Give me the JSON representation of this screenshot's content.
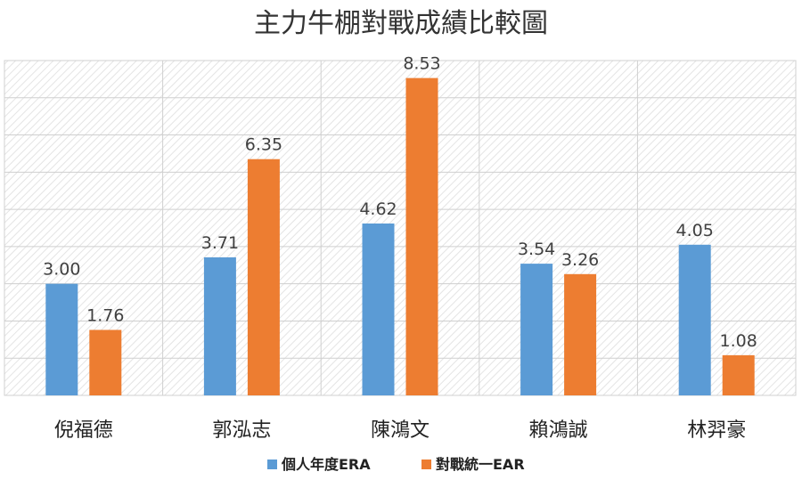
{
  "chart_data": {
    "type": "bar",
    "title": "主力牛棚對戰成績比較圖",
    "xlabel": "",
    "ylabel": "",
    "categories": [
      "倪福德",
      "郭泓志",
      "陳鴻文",
      "賴鴻誠",
      "林羿豪"
    ],
    "series": [
      {
        "name": "個人年度ERA",
        "color": "#5B9BD5",
        "values": [
          3.0,
          3.71,
          4.62,
          3.54,
          4.05
        ]
      },
      {
        "name": "對戰統一EAR",
        "color": "#ED7D31",
        "values": [
          1.76,
          6.35,
          8.53,
          3.26,
          1.08
        ]
      }
    ],
    "ylim": [
      0,
      9
    ],
    "grid": true,
    "legend": "bottom"
  }
}
